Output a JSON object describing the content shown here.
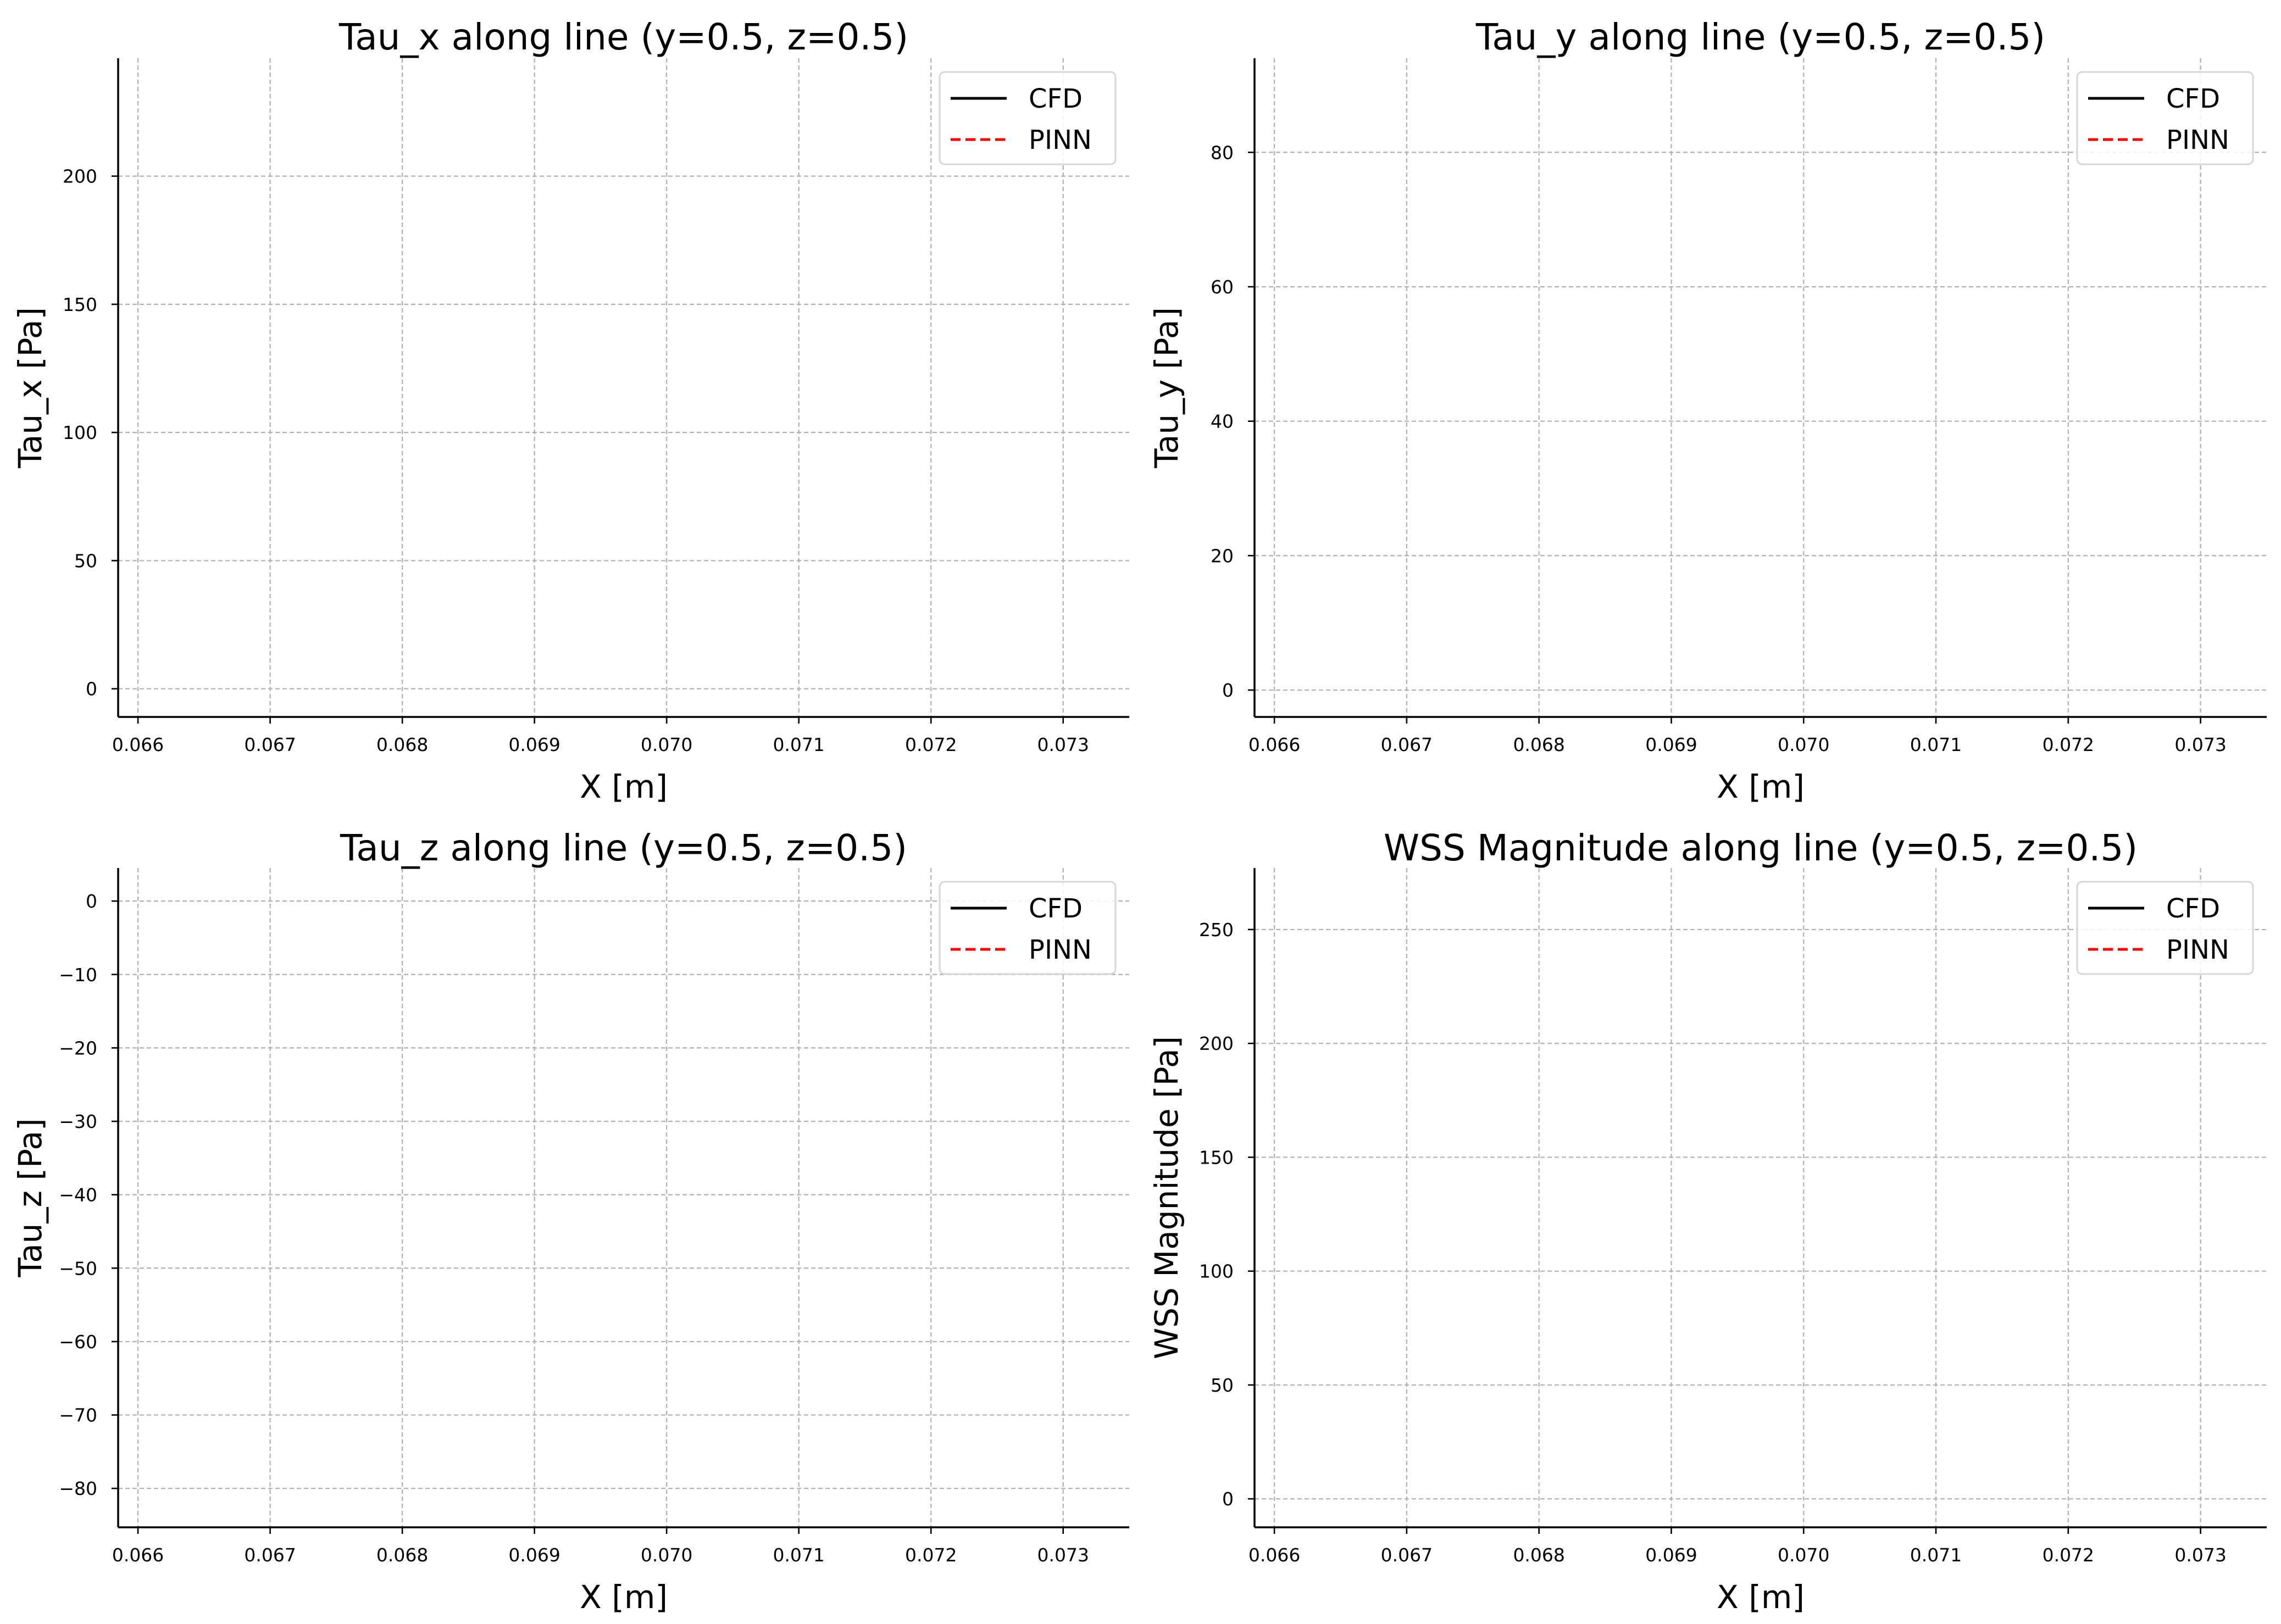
{
  "chart_data": [
    {
      "type": "line",
      "title": "Tau_x along line (y=0.5, z=0.5)",
      "xlabel": "X [m]",
      "ylabel": "Tau_x [Pa]",
      "xlim": [
        0.06585,
        0.0735
      ],
      "ylim": [
        -11,
        246
      ],
      "xticks": [
        0.066,
        0.067,
        0.068,
        0.069,
        0.07,
        0.071,
        0.072,
        0.073
      ],
      "yticks": [
        0,
        50,
        100,
        150,
        200
      ],
      "xtick_labels": [
        "0.066",
        "0.067",
        "0.068",
        "0.069",
        "0.070",
        "0.071",
        "0.072",
        "0.073"
      ],
      "ytick_labels": [
        "0",
        "50",
        "100",
        "150",
        "200"
      ],
      "grid": true,
      "legend_position": "upper right",
      "series": [
        {
          "name": "CFD",
          "style": "solid",
          "color": "#000000",
          "x": [],
          "y": []
        },
        {
          "name": "PINN",
          "style": "dashed",
          "color": "#ff0000",
          "x": [],
          "y": []
        }
      ]
    },
    {
      "type": "line",
      "title": "Tau_y along line (y=0.5, z=0.5)",
      "xlabel": "X [m]",
      "ylabel": "Tau_y [Pa]",
      "xlim": [
        0.06585,
        0.0735
      ],
      "ylim": [
        -4,
        94
      ],
      "xticks": [
        0.066,
        0.067,
        0.068,
        0.069,
        0.07,
        0.071,
        0.072,
        0.073
      ],
      "yticks": [
        0,
        20,
        40,
        60,
        80
      ],
      "xtick_labels": [
        "0.066",
        "0.067",
        "0.068",
        "0.069",
        "0.070",
        "0.071",
        "0.072",
        "0.073"
      ],
      "ytick_labels": [
        "0",
        "20",
        "40",
        "60",
        "80"
      ],
      "grid": true,
      "legend_position": "upper right",
      "series": [
        {
          "name": "CFD",
          "style": "solid",
          "color": "#000000",
          "x": [],
          "y": []
        },
        {
          "name": "PINN",
          "style": "dashed",
          "color": "#ff0000",
          "x": [],
          "y": []
        }
      ]
    },
    {
      "type": "line",
      "title": "Tau_z along line (y=0.5, z=0.5)",
      "xlabel": "X [m]",
      "ylabel": "Tau_z [Pa]",
      "xlim": [
        0.06585,
        0.0735
      ],
      "ylim": [
        -85.3,
        4.5
      ],
      "xticks": [
        0.066,
        0.067,
        0.068,
        0.069,
        0.07,
        0.071,
        0.072,
        0.073
      ],
      "yticks": [
        0,
        -10,
        -20,
        -30,
        -40,
        -50,
        -60,
        -70,
        -80
      ],
      "xtick_labels": [
        "0.066",
        "0.067",
        "0.068",
        "0.069",
        "0.070",
        "0.071",
        "0.072",
        "0.073"
      ],
      "ytick_labels": [
        "0",
        "−10",
        "−20",
        "−30",
        "−40",
        "−50",
        "−60",
        "−70",
        "−80"
      ],
      "grid": true,
      "legend_position": "upper right",
      "series": [
        {
          "name": "CFD",
          "style": "solid",
          "color": "#000000",
          "x": [],
          "y": []
        },
        {
          "name": "PINN",
          "style": "dashed",
          "color": "#ff0000",
          "x": [],
          "y": []
        }
      ]
    },
    {
      "type": "line",
      "title": "WSS Magnitude along line (y=0.5, z=0.5)",
      "xlabel": "X [m]",
      "ylabel": "WSS Magnitude [Pa]",
      "xlim": [
        0.06585,
        0.0735
      ],
      "ylim": [
        -12.5,
        277
      ],
      "xticks": [
        0.066,
        0.067,
        0.068,
        0.069,
        0.07,
        0.071,
        0.072,
        0.073
      ],
      "yticks": [
        0,
        50,
        100,
        150,
        200,
        250
      ],
      "xtick_labels": [
        "0.066",
        "0.067",
        "0.068",
        "0.069",
        "0.070",
        "0.071",
        "0.072",
        "0.073"
      ],
      "ytick_labels": [
        "0",
        "50",
        "100",
        "150",
        "200",
        "250"
      ],
      "grid": true,
      "legend_position": "upper right",
      "series": [
        {
          "name": "CFD",
          "style": "solid",
          "color": "#000000",
          "x": [],
          "y": []
        },
        {
          "name": "PINN",
          "style": "dashed",
          "color": "#ff0000",
          "x": [],
          "y": []
        }
      ]
    }
  ]
}
